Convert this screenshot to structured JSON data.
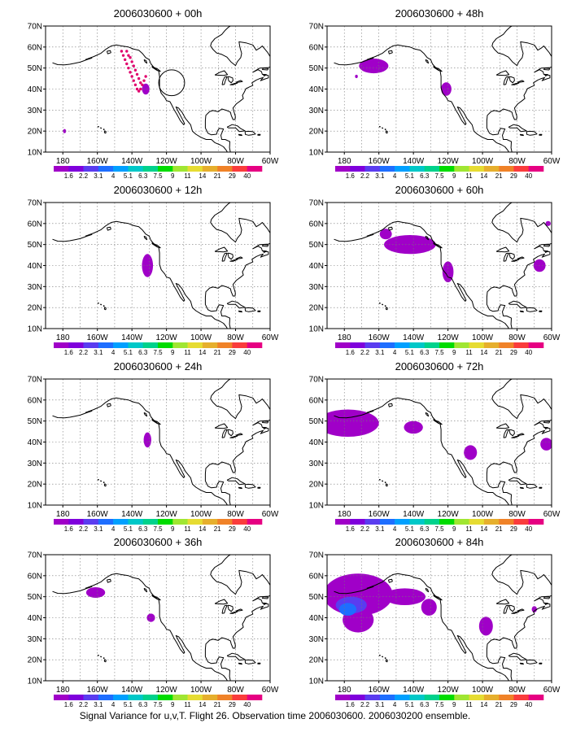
{
  "caption": "Signal Variance for u,v,T. Flight 26. Observation time 2006030600. 2006030200 ensemble.",
  "lat_ticks": [
    "70N",
    "60N",
    "50N",
    "40N",
    "30N",
    "20N",
    "10N"
  ],
  "lon_ticks": [
    "180",
    "160W",
    "140W",
    "120W",
    "100W",
    "80W",
    "60W"
  ],
  "colorbar": {
    "labels": [
      "1.6",
      "2.2",
      "3.1",
      "4",
      "5.1",
      "6.3",
      "7.5",
      "9",
      "11",
      "14",
      "21",
      "29",
      "40"
    ],
    "colors": [
      "#a000c8",
      "#7f00dc",
      "#5a3cf0",
      "#1e6eff",
      "#00a0ff",
      "#00c8c8",
      "#00d28c",
      "#00dc00",
      "#a0e632",
      "#e6dc32",
      "#e6af2d",
      "#f08228",
      "#fa3c3c",
      "#e60082"
    ]
  },
  "map_extent": {
    "lon_min": -190,
    "lon_max": -60,
    "lat_min": 10,
    "lat_max": 70
  },
  "panels": [
    {
      "title": "2006030600 + 00h",
      "flight_track": {
        "color": "#e0006c",
        "circle_center": [
          -117,
          43
        ],
        "circle_radius_deg": 7.5,
        "points": [
          [
            -146,
            58
          ],
          [
            -145,
            56
          ],
          [
            -144,
            54
          ],
          [
            -143,
            52
          ],
          [
            -142,
            50
          ],
          [
            -141,
            48
          ],
          [
            -140,
            46
          ],
          [
            -139,
            44
          ],
          [
            -138,
            42
          ],
          [
            -137,
            40
          ],
          [
            -136,
            39
          ],
          [
            -135,
            40
          ],
          [
            -134,
            42
          ],
          [
            -133,
            44
          ],
          [
            -132,
            46
          ],
          [
            -143,
            58
          ],
          [
            -142,
            56
          ],
          [
            -141,
            55
          ],
          [
            -140,
            53
          ],
          [
            -139,
            51
          ],
          [
            -138,
            49
          ],
          [
            -137,
            47
          ],
          [
            -136,
            45
          ],
          [
            -135,
            43
          ]
        ]
      },
      "blobs": [
        {
          "lon": -132,
          "lat": 40,
          "rlon": 2.2,
          "rlat": 2.6,
          "color": "#a000c8"
        },
        {
          "lon": -179,
          "lat": 20,
          "rlon": 0.9,
          "rlat": 1.0,
          "color": "#a000c8"
        }
      ]
    },
    {
      "title": "2006030600 + 12h",
      "blobs": [
        {
          "lon": -131,
          "lat": 40,
          "rlon": 3.2,
          "rlat": 5.5,
          "color": "#a000c8"
        }
      ]
    },
    {
      "title": "2006030600 + 24h",
      "blobs": [
        {
          "lon": -131,
          "lat": 41,
          "rlon": 2.2,
          "rlat": 3.6,
          "color": "#a000c8"
        }
      ]
    },
    {
      "title": "2006030600 + 36h",
      "blobs": [
        {
          "lon": -161,
          "lat": 52,
          "rlon": 5.5,
          "rlat": 2.5,
          "color": "#a000c8"
        },
        {
          "lon": -129,
          "lat": 40,
          "rlon": 2.4,
          "rlat": 2.0,
          "color": "#a000c8"
        }
      ]
    },
    {
      "title": "2006030600 + 48h",
      "blobs": [
        {
          "lon": -163,
          "lat": 51,
          "rlon": 8.5,
          "rlat": 3.5,
          "color": "#a000c8"
        },
        {
          "lon": -121,
          "lat": 40,
          "rlon": 3.0,
          "rlat": 3.2,
          "color": "#a000c8"
        },
        {
          "lon": -173,
          "lat": 46,
          "rlon": 0.8,
          "rlat": 0.8,
          "color": "#a000c8"
        }
      ]
    },
    {
      "title": "2006030600 + 60h",
      "blobs": [
        {
          "lon": -142,
          "lat": 50,
          "rlon": 15,
          "rlat": 4.5,
          "color": "#a000c8"
        },
        {
          "lon": -156,
          "lat": 55,
          "rlon": 3.5,
          "rlat": 2.5,
          "color": "#a000c8"
        },
        {
          "lon": -120,
          "lat": 37,
          "rlon": 3.2,
          "rlat": 5.0,
          "color": "#a000c8"
        },
        {
          "lon": -67,
          "lat": 40,
          "rlon": 3.5,
          "rlat": 3.0,
          "color": "#a000c8"
        },
        {
          "lon": -62,
          "lat": 60,
          "rlon": 1.5,
          "rlat": 1.2,
          "color": "#a000c8"
        }
      ]
    },
    {
      "title": "2006030600 + 72h",
      "blobs": [
        {
          "lon": -178,
          "lat": 49,
          "rlon": 18,
          "rlat": 6.5,
          "color": "#a000c8"
        },
        {
          "lon": -140,
          "lat": 47,
          "rlon": 5.5,
          "rlat": 3.0,
          "color": "#a000c8"
        },
        {
          "lon": -107,
          "lat": 35,
          "rlon": 3.8,
          "rlat": 3.5,
          "color": "#a000c8"
        },
        {
          "lon": -63,
          "lat": 39,
          "rlon": 3.5,
          "rlat": 3.0,
          "color": "#a000c8"
        }
      ]
    },
    {
      "title": "2006030600 + 84h",
      "blobs": [
        {
          "lon": -172,
          "lat": 51,
          "rlon": 20,
          "rlat": 10,
          "color": "#a000c8"
        },
        {
          "lon": -172,
          "lat": 39,
          "rlon": 9,
          "rlat": 6,
          "color": "#a000c8"
        },
        {
          "lon": -145,
          "lat": 50,
          "rlon": 12,
          "rlat": 4,
          "color": "#a000c8"
        },
        {
          "lon": -176,
          "lat": 46,
          "rlon": 9,
          "rlat": 4,
          "color": "#5a3cf0"
        },
        {
          "lon": -178,
          "lat": 44,
          "rlon": 5,
          "rlat": 3,
          "color": "#1e6eff"
        },
        {
          "lon": -131,
          "lat": 45,
          "rlon": 4.5,
          "rlat": 4.0,
          "color": "#a000c8"
        },
        {
          "lon": -98,
          "lat": 36,
          "rlon": 4.0,
          "rlat": 4.5,
          "color": "#a000c8"
        },
        {
          "lon": -70,
          "lat": 44,
          "rlon": 1.5,
          "rlat": 1.5,
          "color": "#a000c8"
        }
      ]
    }
  ]
}
